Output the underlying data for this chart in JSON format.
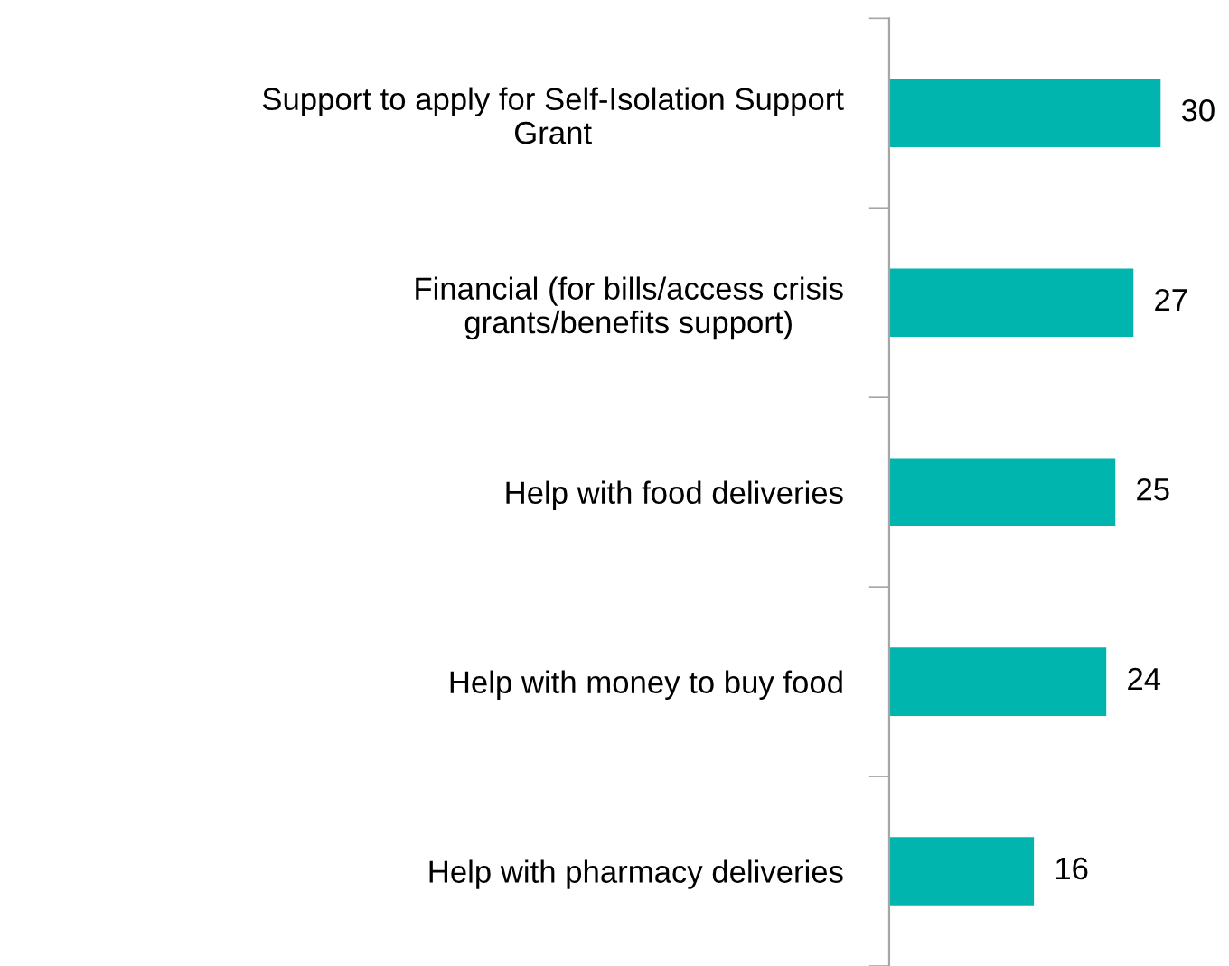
{
  "chart_data": {
    "type": "bar",
    "orientation": "horizontal",
    "categories": [
      "Support to apply for Self-Isolation Support\nGrant",
      "Financial (for bills/access crisis\ngrants/benefits support)",
      "Help with food deliveries",
      "Help with money to buy food",
      "Help with pharmacy deliveries"
    ],
    "values": [
      30,
      27,
      25,
      24,
      16
    ],
    "color": "#00b5ad",
    "data_labels": true,
    "grid": false,
    "legend": false
  }
}
